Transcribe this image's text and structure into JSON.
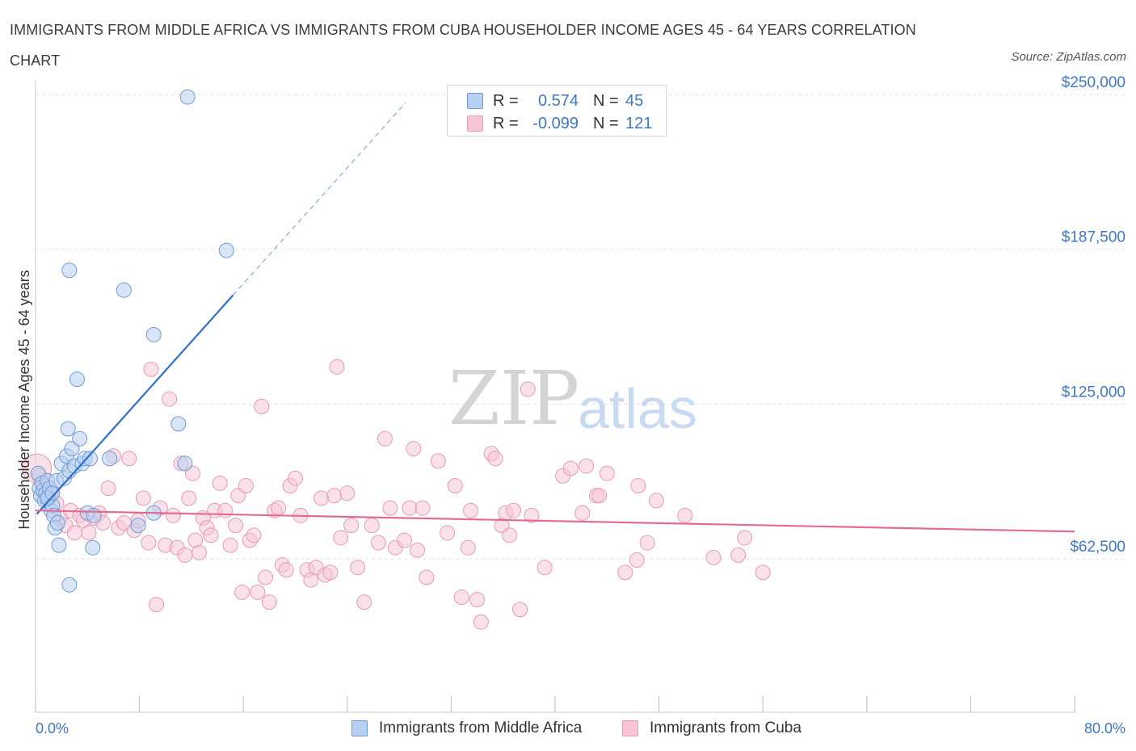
{
  "header": {
    "title": "IMMIGRANTS FROM MIDDLE AFRICA VS IMMIGRANTS FROM CUBA HOUSEHOLDER INCOME AGES 45 - 64 YEARS CORRELATION CHART",
    "source": "Source: ZipAtlas.com"
  },
  "legend": {
    "series1": {
      "r_label": "R =",
      "r_value": "0.574",
      "n_label": "N =",
      "n_value": "45"
    },
    "series2": {
      "r_label": "R =",
      "r_value": "-0.099",
      "n_label": "N =",
      "n_value": "121"
    }
  },
  "bottom_legend": {
    "series1": "Immigrants from Middle Africa",
    "series2": "Immigrants from Cuba"
  },
  "colors": {
    "series1_fill": "#b8d0f0",
    "series1_stroke": "#6f9ad6",
    "series1_line": "#2f6fcc",
    "series2_fill": "#f6c6d6",
    "series2_stroke": "#e89ab4",
    "series2_line": "#e06c96",
    "tick_text": "#3d78c8",
    "grid": "#dfe3e8"
  },
  "chart_data": {
    "type": "scatter",
    "title": "IMMIGRANTS FROM MIDDLE AFRICA VS IMMIGRANTS FROM CUBA HOUSEHOLDER INCOME AGES 45 - 64 YEARS CORRELATION CHART",
    "xlabel": "",
    "ylabel": "Householder Income Ages 45 - 64 years",
    "xlim": [
      0,
      80
    ],
    "ylim": [
      0,
      255000
    ],
    "x_tick_labels": [
      "0.0%",
      "80.0%"
    ],
    "y_ticks": [
      {
        "value": 62500,
        "label": "$62,500"
      },
      {
        "value": 125000,
        "label": "$125,000"
      },
      {
        "value": 187500,
        "label": "$187,500"
      },
      {
        "value": 250000,
        "label": "$250,000"
      }
    ],
    "grid": true,
    "watermark": "ZIPatlas",
    "series": [
      {
        "name": "Immigrants from Middle Africa",
        "r": 0.574,
        "n": 45,
        "trend": {
          "x_start": 0.1,
          "x_solid_end": 15.2,
          "x_dashed_end": 28.5,
          "y_intercept": 80000,
          "slope": 5850
        },
        "points": [
          [
            0.2,
            97000
          ],
          [
            0.3,
            91000
          ],
          [
            0.4,
            88000
          ],
          [
            0.5,
            93000
          ],
          [
            0.6,
            90000
          ],
          [
            0.7,
            86000
          ],
          [
            0.8,
            89000
          ],
          [
            0.9,
            94000
          ],
          [
            1.0,
            87000
          ],
          [
            1.1,
            91000
          ],
          [
            1.2,
            82000
          ],
          [
            1.3,
            84000
          ],
          [
            1.4,
            80000
          ],
          [
            1.5,
            75000
          ],
          [
            1.6,
            94000
          ],
          [
            1.7,
            77000
          ],
          [
            1.8,
            68000
          ],
          [
            2.0,
            101000
          ],
          [
            2.2,
            95000
          ],
          [
            2.4,
            104000
          ],
          [
            2.5,
            115000
          ],
          [
            2.6,
            98000
          ],
          [
            2.8,
            107000
          ],
          [
            3.0,
            100000
          ],
          [
            3.4,
            111000
          ],
          [
            3.6,
            101000
          ],
          [
            3.8,
            103000
          ],
          [
            4.0,
            81000
          ],
          [
            4.2,
            103000
          ],
          [
            4.4,
            67000
          ],
          [
            4.5,
            80000
          ],
          [
            5.7,
            103000
          ],
          [
            7.9,
            76000
          ],
          [
            9.1,
            81000
          ],
          [
            9.1,
            153000
          ],
          [
            11.0,
            117000
          ],
          [
            11.5,
            101000
          ],
          [
            3.2,
            135000
          ],
          [
            2.6,
            179000
          ],
          [
            6.8,
            171000
          ],
          [
            2.6,
            52000
          ],
          [
            11.7,
            249000
          ],
          [
            14.7,
            187000
          ],
          [
            0.9,
            87000
          ],
          [
            1.3,
            89000
          ]
        ]
      },
      {
        "name": "Immigrants from Cuba",
        "r": -0.099,
        "n": 121,
        "trend": {
          "x_start": 0,
          "x_end": 80,
          "y_start": 82000,
          "y_end": 73500
        },
        "points": [
          [
            0.1,
            99000
          ],
          [
            0.3,
            96000
          ],
          [
            0.6,
            92000
          ],
          [
            0.9,
            86000
          ],
          [
            1.2,
            89000
          ],
          [
            1.6,
            85000
          ],
          [
            1.9,
            79000
          ],
          [
            2.3,
            76000
          ],
          [
            2.7,
            82000
          ],
          [
            3.0,
            73000
          ],
          [
            3.4,
            80000
          ],
          [
            3.7,
            78000
          ],
          [
            4.1,
            73000
          ],
          [
            4.5,
            79000
          ],
          [
            4.9,
            81000
          ],
          [
            5.2,
            77000
          ],
          [
            5.6,
            91000
          ],
          [
            6.0,
            104000
          ],
          [
            6.4,
            75000
          ],
          [
            6.8,
            77000
          ],
          [
            7.2,
            103000
          ],
          [
            7.6,
            74000
          ],
          [
            7.9,
            78000
          ],
          [
            8.3,
            87000
          ],
          [
            8.7,
            69000
          ],
          [
            8.9,
            139000
          ],
          [
            9.3,
            44000
          ],
          [
            9.6,
            83000
          ],
          [
            10.0,
            68000
          ],
          [
            10.3,
            127000
          ],
          [
            10.6,
            80000
          ],
          [
            10.9,
            67000
          ],
          [
            11.2,
            101000
          ],
          [
            11.5,
            64000
          ],
          [
            11.8,
            87000
          ],
          [
            12.1,
            97000
          ],
          [
            12.3,
            70000
          ],
          [
            12.6,
            65000
          ],
          [
            12.9,
            79000
          ],
          [
            13.2,
            75000
          ],
          [
            13.5,
            72000
          ],
          [
            13.8,
            82000
          ],
          [
            14.2,
            93000
          ],
          [
            14.6,
            82000
          ],
          [
            15.0,
            68000
          ],
          [
            15.4,
            76000
          ],
          [
            15.6,
            88000
          ],
          [
            15.9,
            49000
          ],
          [
            16.2,
            92000
          ],
          [
            16.5,
            70000
          ],
          [
            16.8,
            72000
          ],
          [
            17.1,
            49000
          ],
          [
            17.4,
            124000
          ],
          [
            17.7,
            55000
          ],
          [
            18.0,
            45000
          ],
          [
            18.4,
            82000
          ],
          [
            18.7,
            83000
          ],
          [
            19.0,
            60000
          ],
          [
            19.3,
            58000
          ],
          [
            19.6,
            92000
          ],
          [
            20.0,
            95000
          ],
          [
            20.4,
            80000
          ],
          [
            20.9,
            58000
          ],
          [
            21.2,
            54000
          ],
          [
            21.6,
            59000
          ],
          [
            22.0,
            87000
          ],
          [
            22.3,
            56000
          ],
          [
            22.7,
            57000
          ],
          [
            23.0,
            88000
          ],
          [
            23.2,
            140000
          ],
          [
            23.5,
            71000
          ],
          [
            24.0,
            89000
          ],
          [
            24.3,
            76000
          ],
          [
            24.8,
            59000
          ],
          [
            25.3,
            45000
          ],
          [
            25.9,
            76000
          ],
          [
            26.4,
            69000
          ],
          [
            26.9,
            111000
          ],
          [
            27.3,
            83000
          ],
          [
            27.7,
            67000
          ],
          [
            28.4,
            70000
          ],
          [
            28.8,
            83000
          ],
          [
            29.1,
            107000
          ],
          [
            29.4,
            66000
          ],
          [
            29.8,
            83000
          ],
          [
            30.1,
            55000
          ],
          [
            31.0,
            102000
          ],
          [
            31.7,
            73000
          ],
          [
            32.3,
            92000
          ],
          [
            32.8,
            47000
          ],
          [
            33.3,
            67000
          ],
          [
            34.0,
            46000
          ],
          [
            34.3,
            37000
          ],
          [
            35.1,
            105000
          ],
          [
            35.4,
            103000
          ],
          [
            35.9,
            76000
          ],
          [
            36.2,
            81000
          ],
          [
            36.8,
            82000
          ],
          [
            37.3,
            42000
          ],
          [
            37.9,
            131000
          ],
          [
            38.2,
            80000
          ],
          [
            39.2,
            59000
          ],
          [
            40.6,
            96000
          ],
          [
            41.2,
            99000
          ],
          [
            42.1,
            81000
          ],
          [
            42.4,
            100000
          ],
          [
            43.2,
            88000
          ],
          [
            44.0,
            97000
          ],
          [
            45.4,
            57000
          ],
          [
            46.3,
            62000
          ],
          [
            46.4,
            92000
          ],
          [
            47.1,
            69000
          ],
          [
            47.8,
            86000
          ],
          [
            50.0,
            80000
          ],
          [
            52.2,
            63000
          ],
          [
            54.1,
            64000
          ],
          [
            54.6,
            71000
          ],
          [
            56.0,
            57000
          ],
          [
            43.4,
            88000
          ],
          [
            36.5,
            72000
          ],
          [
            33.5,
            82000
          ]
        ]
      }
    ]
  }
}
